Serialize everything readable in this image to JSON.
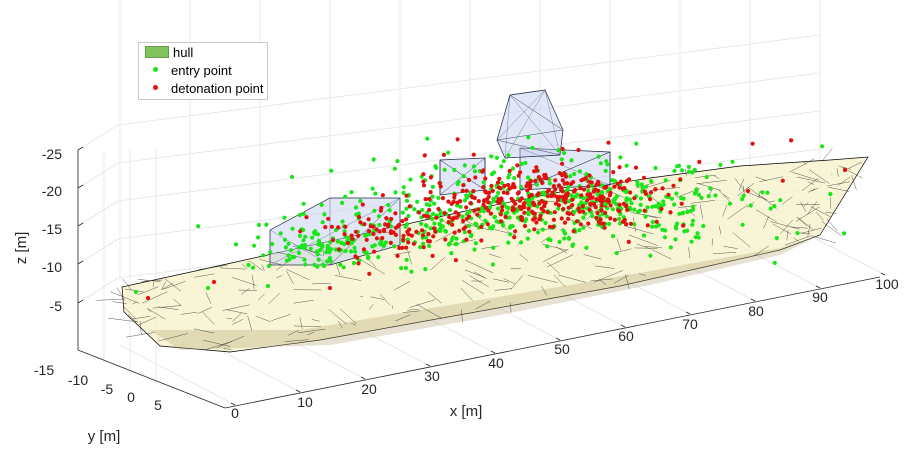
{
  "chart_data": {
    "type": "scatter3d",
    "title": "",
    "xlabel": "x [m]",
    "ylabel": "y [m]",
    "zlabel": "z [m]",
    "x_ticks": [
      "0",
      "10",
      "20",
      "30",
      "40",
      "50",
      "60",
      "70",
      "80",
      "90",
      "100"
    ],
    "y_ticks": [
      "-15",
      "-10",
      "-5",
      "0",
      "5"
    ],
    "z_ticks": [
      "-25",
      "-20",
      "-15",
      "-10",
      "-5"
    ],
    "xlim": [
      0,
      105
    ],
    "ylim": [
      -15,
      8
    ],
    "zlim": [
      -26,
      0
    ],
    "z_direction": "reversed",
    "grid": true,
    "legend_position": "top-left",
    "series": [
      {
        "name": "hull",
        "kind": "mesh",
        "color": "#f5f0c8",
        "edge_color": "#000000",
        "superstructure_color": "#c8d4ee"
      },
      {
        "name": "entry point",
        "kind": "points",
        "color": "#19e619"
      },
      {
        "name": "detonation point",
        "kind": "points",
        "color": "#e01010"
      }
    ]
  }
}
